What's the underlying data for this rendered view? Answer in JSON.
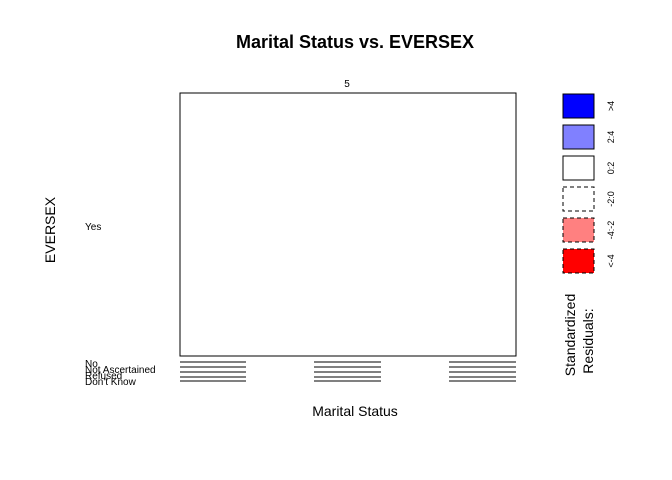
{
  "chart_data": {
    "type": "mosaic",
    "title": "Marital Status vs. EVERSEX",
    "xlabel": "Marital Status",
    "ylabel": "EVERSEX",
    "x_categories": [
      "5"
    ],
    "y_categories": [
      "Yes",
      "No",
      "Not Ascertained",
      "Refused",
      "Don't Know"
    ],
    "legend": {
      "title_line1": "Standardized",
      "title_line2": "Residuals:",
      "items": [
        {
          "label": ">4",
          "fill": "#0000ff",
          "dashed": false
        },
        {
          "label": "2:4",
          "fill": "#8080ff",
          "dashed": false
        },
        {
          "label": "0:2",
          "fill": "#ffffff",
          "dashed": false
        },
        {
          "label": "-2:0",
          "fill": "#ffffff",
          "dashed": true
        },
        {
          "label": "-4:-2",
          "fill": "#ff8080",
          "dashed": true
        },
        {
          "label": "<-4",
          "fill": "#ff0000",
          "dashed": true
        }
      ]
    }
  }
}
